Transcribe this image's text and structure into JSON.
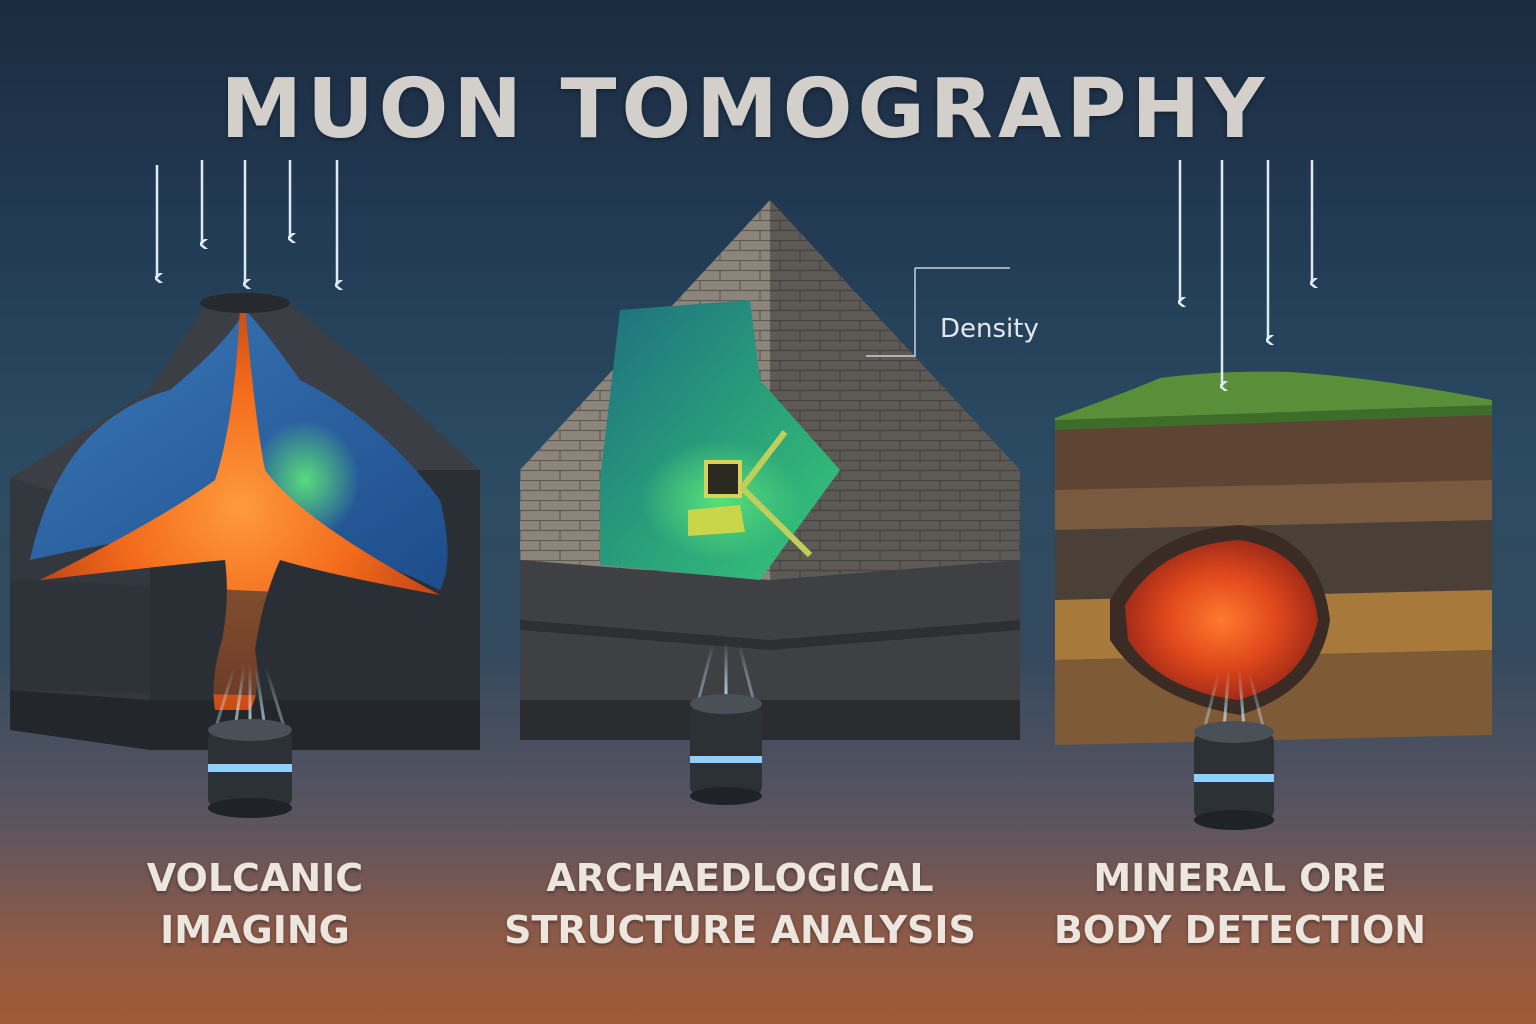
{
  "title": "MUON TOMOGRAPHY",
  "panels": [
    {
      "id": "volcanic",
      "line1": "VOLCANIC",
      "line2": "IMAGING"
    },
    {
      "id": "archaeological",
      "line1": "ARCHAEDLOGICAL",
      "line2": "STRUCTURE ANALYSIS"
    },
    {
      "id": "mineral",
      "line1": "MINERAL ORE",
      "line2": "BODY DETECTION"
    }
  ],
  "annotation": {
    "density_label": "Density"
  },
  "colors": {
    "lava": "#f26a1b",
    "density_glow": "#3ad37a",
    "detector_ring": "#8fd0ff",
    "grass": "#5a8f3a",
    "ore": "#e24a1c"
  },
  "icons": [
    "muon-arrow-icon",
    "muon-detector-icon"
  ]
}
